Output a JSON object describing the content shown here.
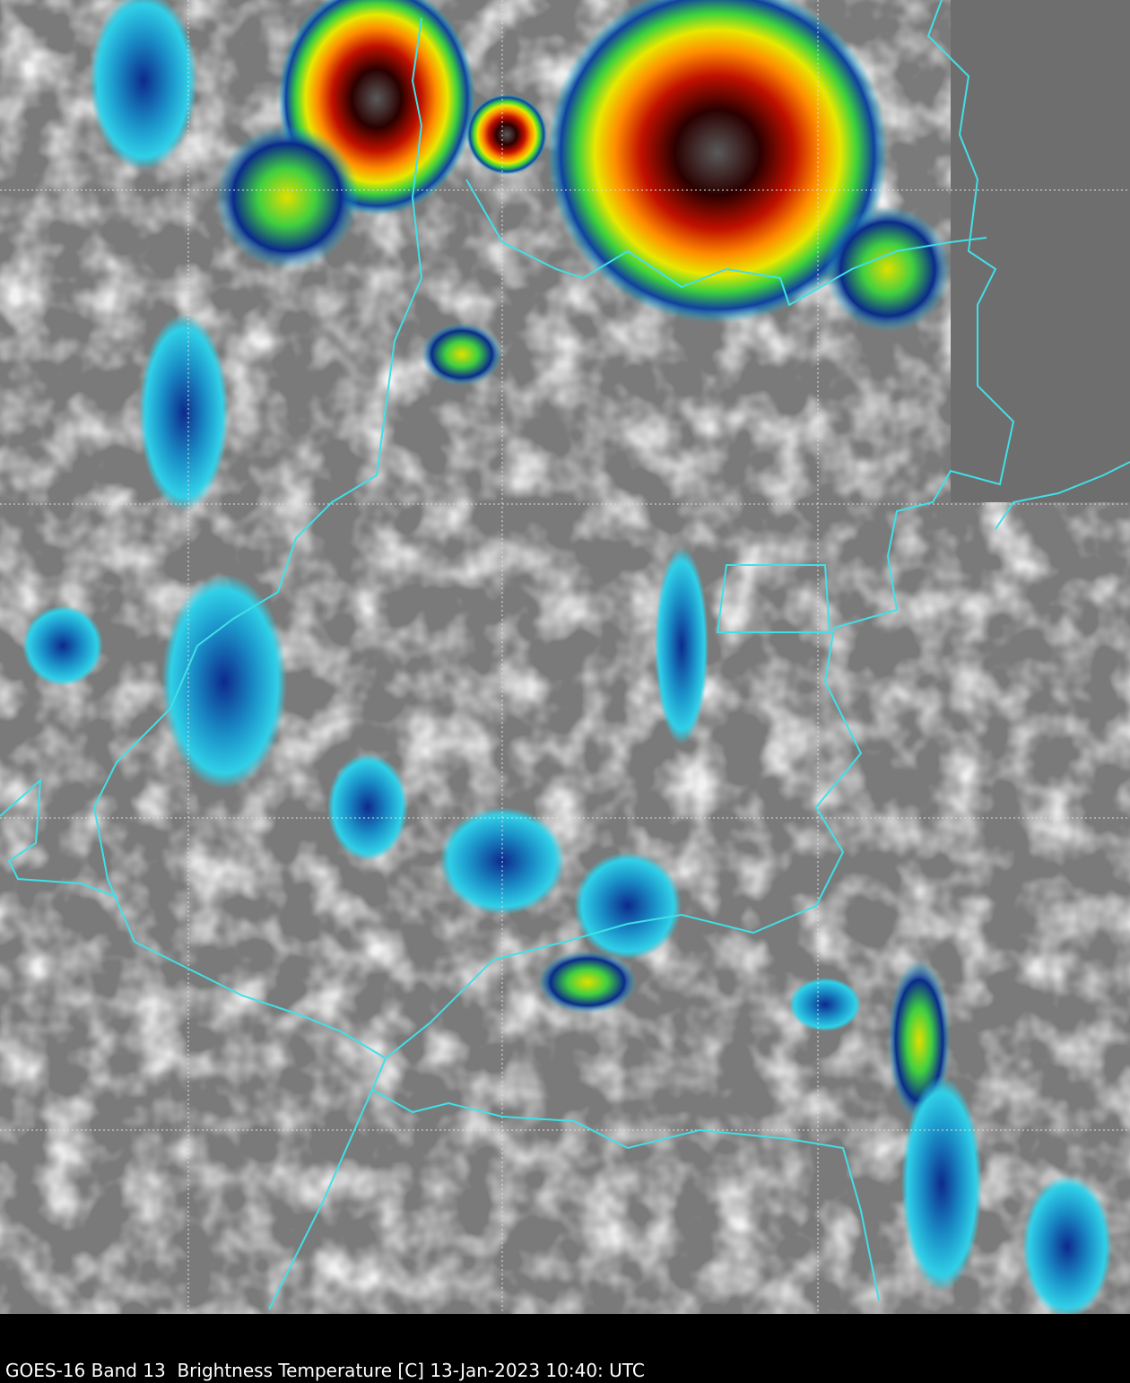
{
  "caption": "GOES-16 Band 13  Brightness Temperature [C] 13-Jan-2023 10:40: UTC"
}
